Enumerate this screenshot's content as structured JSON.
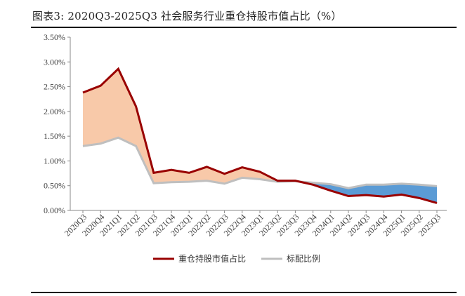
{
  "title": "图表3:  2020Q3-2025Q3 社会服务行业重仓持股市值占比（%）",
  "chart_data": {
    "type": "line",
    "x": [
      "2020Q3",
      "2020Q4",
      "2021Q1",
      "2021Q2",
      "2021Q3",
      "2021Q4",
      "2022Q1",
      "2022Q2",
      "2022Q3",
      "2022Q4",
      "2023Q1",
      "2023Q2",
      "2023Q3",
      "2023Q4",
      "2024Q1",
      "2024Q2",
      "2024Q3",
      "2024Q4",
      "2025Q1",
      "2025Q2",
      "2025Q3"
    ],
    "series": [
      {
        "name": "重仓持股市值占比",
        "color": "#990000",
        "values": [
          2.38,
          2.52,
          2.86,
          2.1,
          0.76,
          0.82,
          0.76,
          0.88,
          0.74,
          0.87,
          0.78,
          0.6,
          0.6,
          0.52,
          0.4,
          0.29,
          0.31,
          0.28,
          0.32,
          0.25,
          0.15
        ]
      },
      {
        "name": "标配比例",
        "color": "#bfbfbf",
        "values": [
          1.3,
          1.35,
          1.47,
          1.3,
          0.55,
          0.57,
          0.58,
          0.6,
          0.54,
          0.66,
          0.63,
          0.58,
          0.59,
          0.56,
          0.53,
          0.45,
          0.52,
          0.52,
          0.54,
          0.52,
          0.49
        ]
      }
    ],
    "fill_colors": {
      "above": "#f8c9a9",
      "below": "#5b9bd5"
    },
    "ylim": [
      0,
      3.5
    ],
    "yticks": [
      "0.00%",
      "0.50%",
      "1.00%",
      "1.50%",
      "2.00%",
      "2.50%",
      "3.00%",
      "3.50%"
    ],
    "grid": false,
    "legend_position": "bottom"
  }
}
